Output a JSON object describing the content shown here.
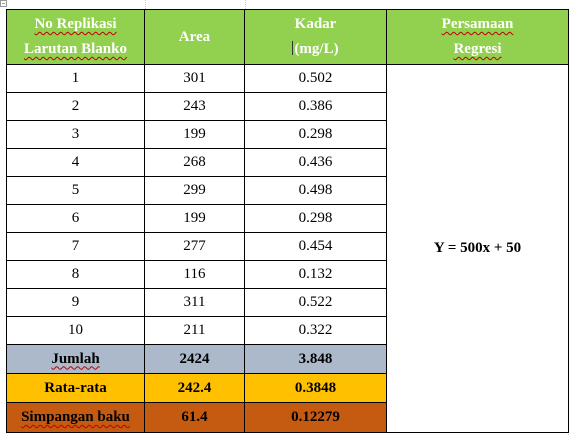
{
  "table": {
    "header": {
      "col1_line1": "No Replikasi",
      "col1_line2": "Larutan Blanko",
      "col2": "Area",
      "col3_line1": "Kadar",
      "col3_line2": "(mg/L)",
      "col4_line1": "Persamaan",
      "col4_line2": "Regresi"
    },
    "rows": [
      {
        "no": "1",
        "area": "301",
        "kadar": "0.502"
      },
      {
        "no": "2",
        "area": "243",
        "kadar": "0.386"
      },
      {
        "no": "3",
        "area": "199",
        "kadar": "0.298"
      },
      {
        "no": "4",
        "area": "268",
        "kadar": "0.436"
      },
      {
        "no": "5",
        "area": "299",
        "kadar": "0.498"
      },
      {
        "no": "6",
        "area": "199",
        "kadar": "0.298"
      },
      {
        "no": "7",
        "area": "277",
        "kadar": "0.454"
      },
      {
        "no": "8",
        "area": "116",
        "kadar": "0.132"
      },
      {
        "no": "9",
        "area": "311",
        "kadar": "0.522"
      },
      {
        "no": "10",
        "area": "211",
        "kadar": "0.322"
      }
    ],
    "equation": "Y = 500x + 50",
    "summary": {
      "jumlah": {
        "label": "Jumlah",
        "area": "2424",
        "kadar": "3.848"
      },
      "rata_rata": {
        "label": "Rata-rata",
        "area": "242.4",
        "kadar": "0.3848"
      },
      "simpangan_baku": {
        "label": "Simpangan baku",
        "area": "61.4",
        "kadar": "0.12279"
      }
    }
  },
  "colors": {
    "header_bg": "#92d050",
    "header_text": "#ffffff",
    "jumlah_bg": "#acb9ca",
    "rata_rata_bg": "#ffc000",
    "simpangan_baku_bg": "#c55a11",
    "spellcheck_underline": "#c00000"
  }
}
